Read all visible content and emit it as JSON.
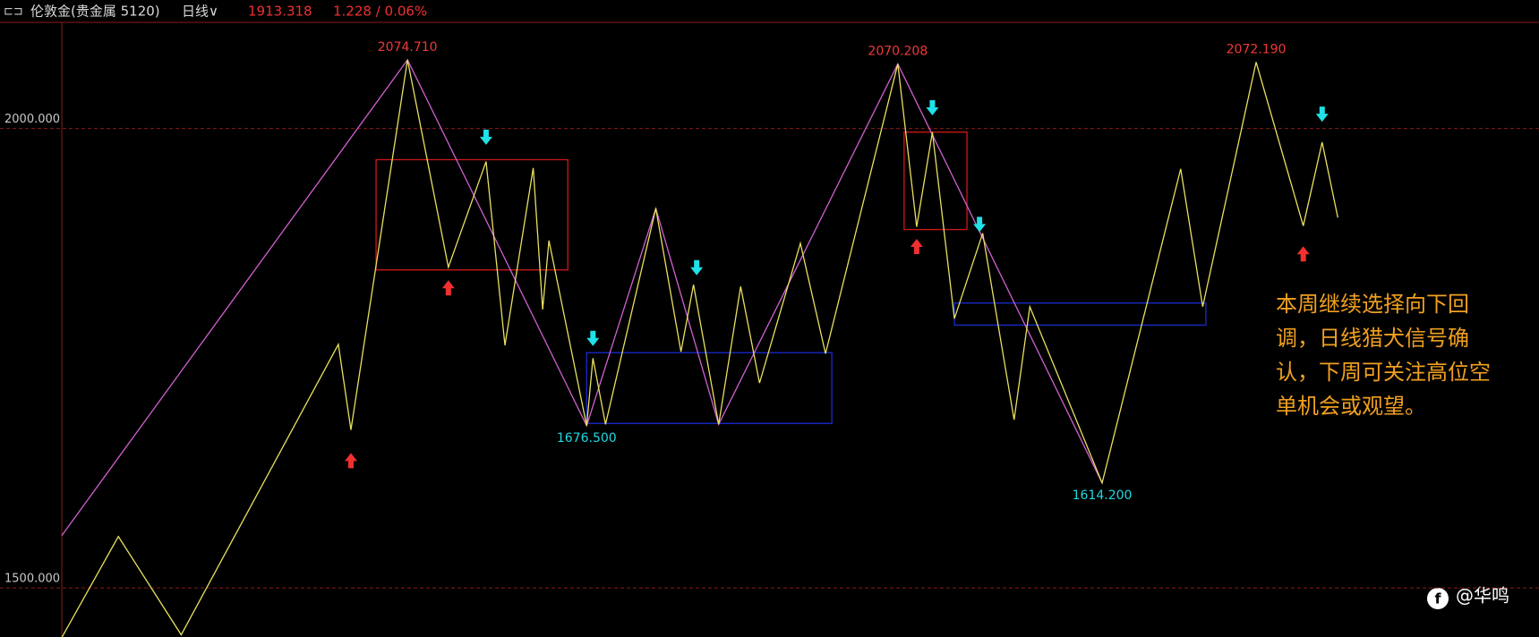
{
  "header": {
    "icon": "⊏⊐",
    "instrument": "伦敦金(贵金属 5120)",
    "period": "日线∨",
    "price": "1913.318",
    "change": "1.228 / 0.06%"
  },
  "chart_data": {
    "type": "line",
    "xlim": [
      0,
      470
    ],
    "ylim": [
      1446.6,
      2116.4
    ],
    "yticks": [
      {
        "value": 2000,
        "label": "2000.000"
      },
      {
        "value": 1500,
        "label": "1500.000"
      }
    ],
    "grid": true,
    "grid_color": "#8b1a1a",
    "series": [
      {
        "name": "黄色波段",
        "color": "#e8e060",
        "x": [
          0,
          18,
          38,
          88,
          92,
          110,
          123,
          135,
          141,
          150,
          153,
          155,
          167,
          169,
          173,
          189,
          197,
          201,
          209,
          216,
          222,
          235,
          243,
          266,
          272,
          277,
          284,
          293,
          303,
          308,
          331,
          356,
          363,
          380,
          395,
          401,
          406
        ],
        "values": [
          1446,
          1556,
          1449,
          1765,
          1672,
          2074.71,
          1849,
          1964,
          1764,
          1957,
          1803,
          1878,
          1676.5,
          1750,
          1678,
          1913,
          1757,
          1830,
          1678,
          1828,
          1723,
          1875,
          1755,
          2070.208,
          1893,
          1996,
          1793,
          1886,
          1683,
          1806,
          1614.2,
          1956,
          1806,
          2072.19,
          1894,
          1985,
          1903
        ]
      },
      {
        "name": "紫色趋势",
        "color": "#d060d0",
        "x": [
          0,
          110,
          167,
          189,
          209,
          266,
          331
        ],
        "values": [
          1557,
          2074.71,
          1676.5,
          1913,
          1678,
          2070.208,
          1614.2
        ]
      }
    ],
    "boxes": [
      {
        "color": "#d01818",
        "x": [
          100,
          161
        ],
        "values": [
          1846,
          1966
        ]
      },
      {
        "color": "#1a2ad0",
        "x": [
          167,
          245
        ],
        "values": [
          1679,
          1756
        ]
      },
      {
        "color": "#d01818",
        "x": [
          268,
          288
        ],
        "values": [
          1890,
          1996
        ]
      },
      {
        "color": "#1a2ad0",
        "x": [
          284,
          364
        ],
        "values": [
          1786,
          1810
        ]
      }
    ],
    "arrows_down": {
      "color": "#20e0e8",
      "x": [
        135,
        169,
        202,
        277,
        292,
        401
      ],
      "values": [
        1990,
        1771,
        1848,
        2022,
        1895,
        2015
      ]
    },
    "arrows_up": {
      "color": "#f03030",
      "x": [
        92,
        123,
        272,
        395
      ],
      "values": [
        1639,
        1827,
        1872,
        1864
      ]
    },
    "price_labels": [
      {
        "x": 110,
        "value": 2074.71,
        "label": "2074.710",
        "color": "#f03838",
        "position": "above"
      },
      {
        "x": 266,
        "value": 2070.208,
        "label": "2070.208",
        "color": "#f03838",
        "position": "above"
      },
      {
        "x": 380,
        "value": 2072.19,
        "label": "2072.190",
        "color": "#f03838",
        "position": "above"
      },
      {
        "x": 167,
        "value": 1676.5,
        "label": "1676.500",
        "color": "#20d8e0",
        "position": "below"
      },
      {
        "x": 331,
        "value": 1614.2,
        "label": "1614.200",
        "color": "#20d8e0",
        "position": "below"
      }
    ],
    "annotation": [
      "本周继续选择向下回",
      "调，日线猎犬信号确",
      "认，下周可关注高位空",
      "单机会或观望。"
    ],
    "annotation_color": "#f0a020"
  },
  "watermark": "@华鸣"
}
